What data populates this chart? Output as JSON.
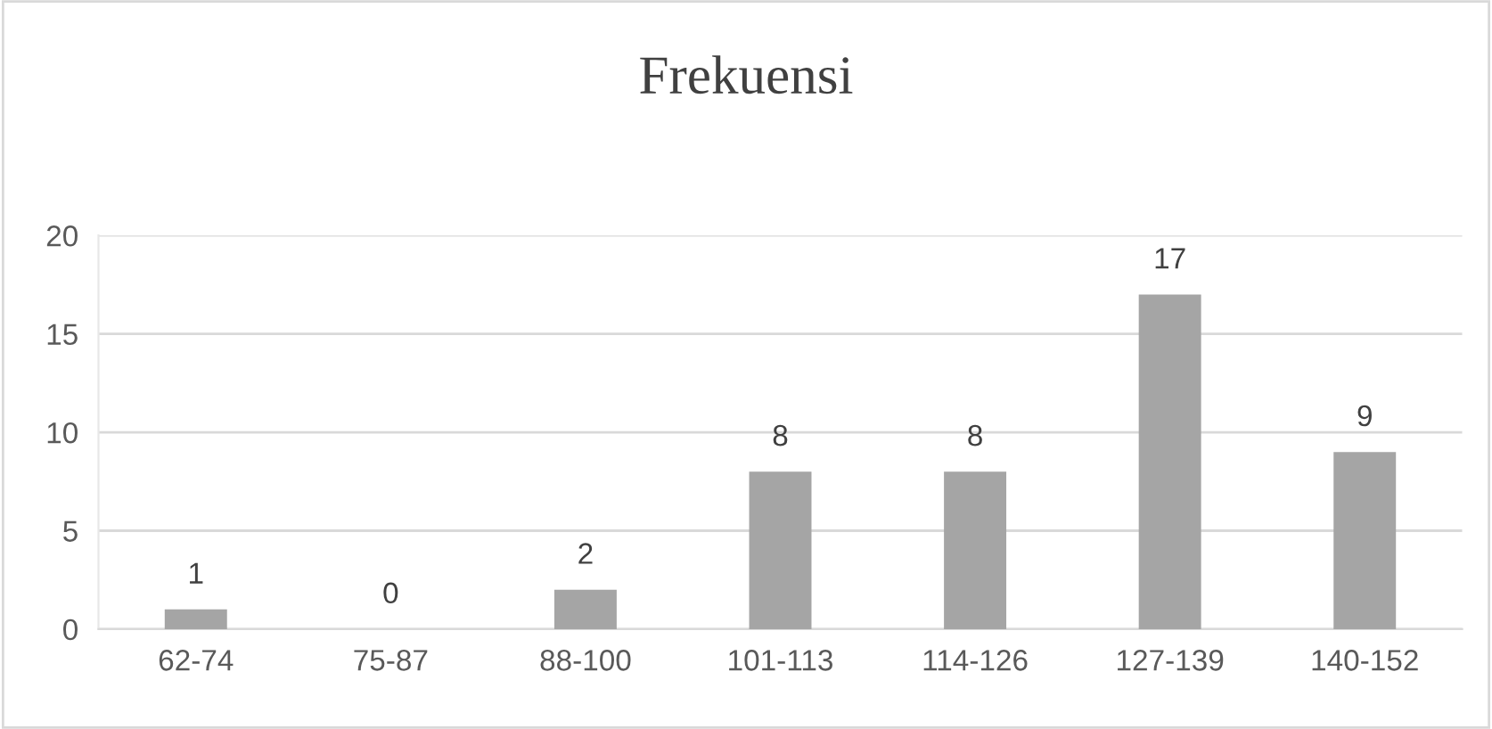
{
  "chart_data": {
    "type": "bar",
    "title": "Frekuensi",
    "categories": [
      "62-74",
      "75-87",
      "88-100",
      "101-113",
      "114-126",
      "127-139",
      "140-152"
    ],
    "values": [
      1,
      0,
      2,
      8,
      8,
      17,
      9
    ],
    "color": "#a5a5a5",
    "ylim": [
      0,
      20
    ],
    "yticks": [
      0,
      5,
      10,
      15,
      20
    ],
    "grid": "y",
    "data_labels": true
  }
}
